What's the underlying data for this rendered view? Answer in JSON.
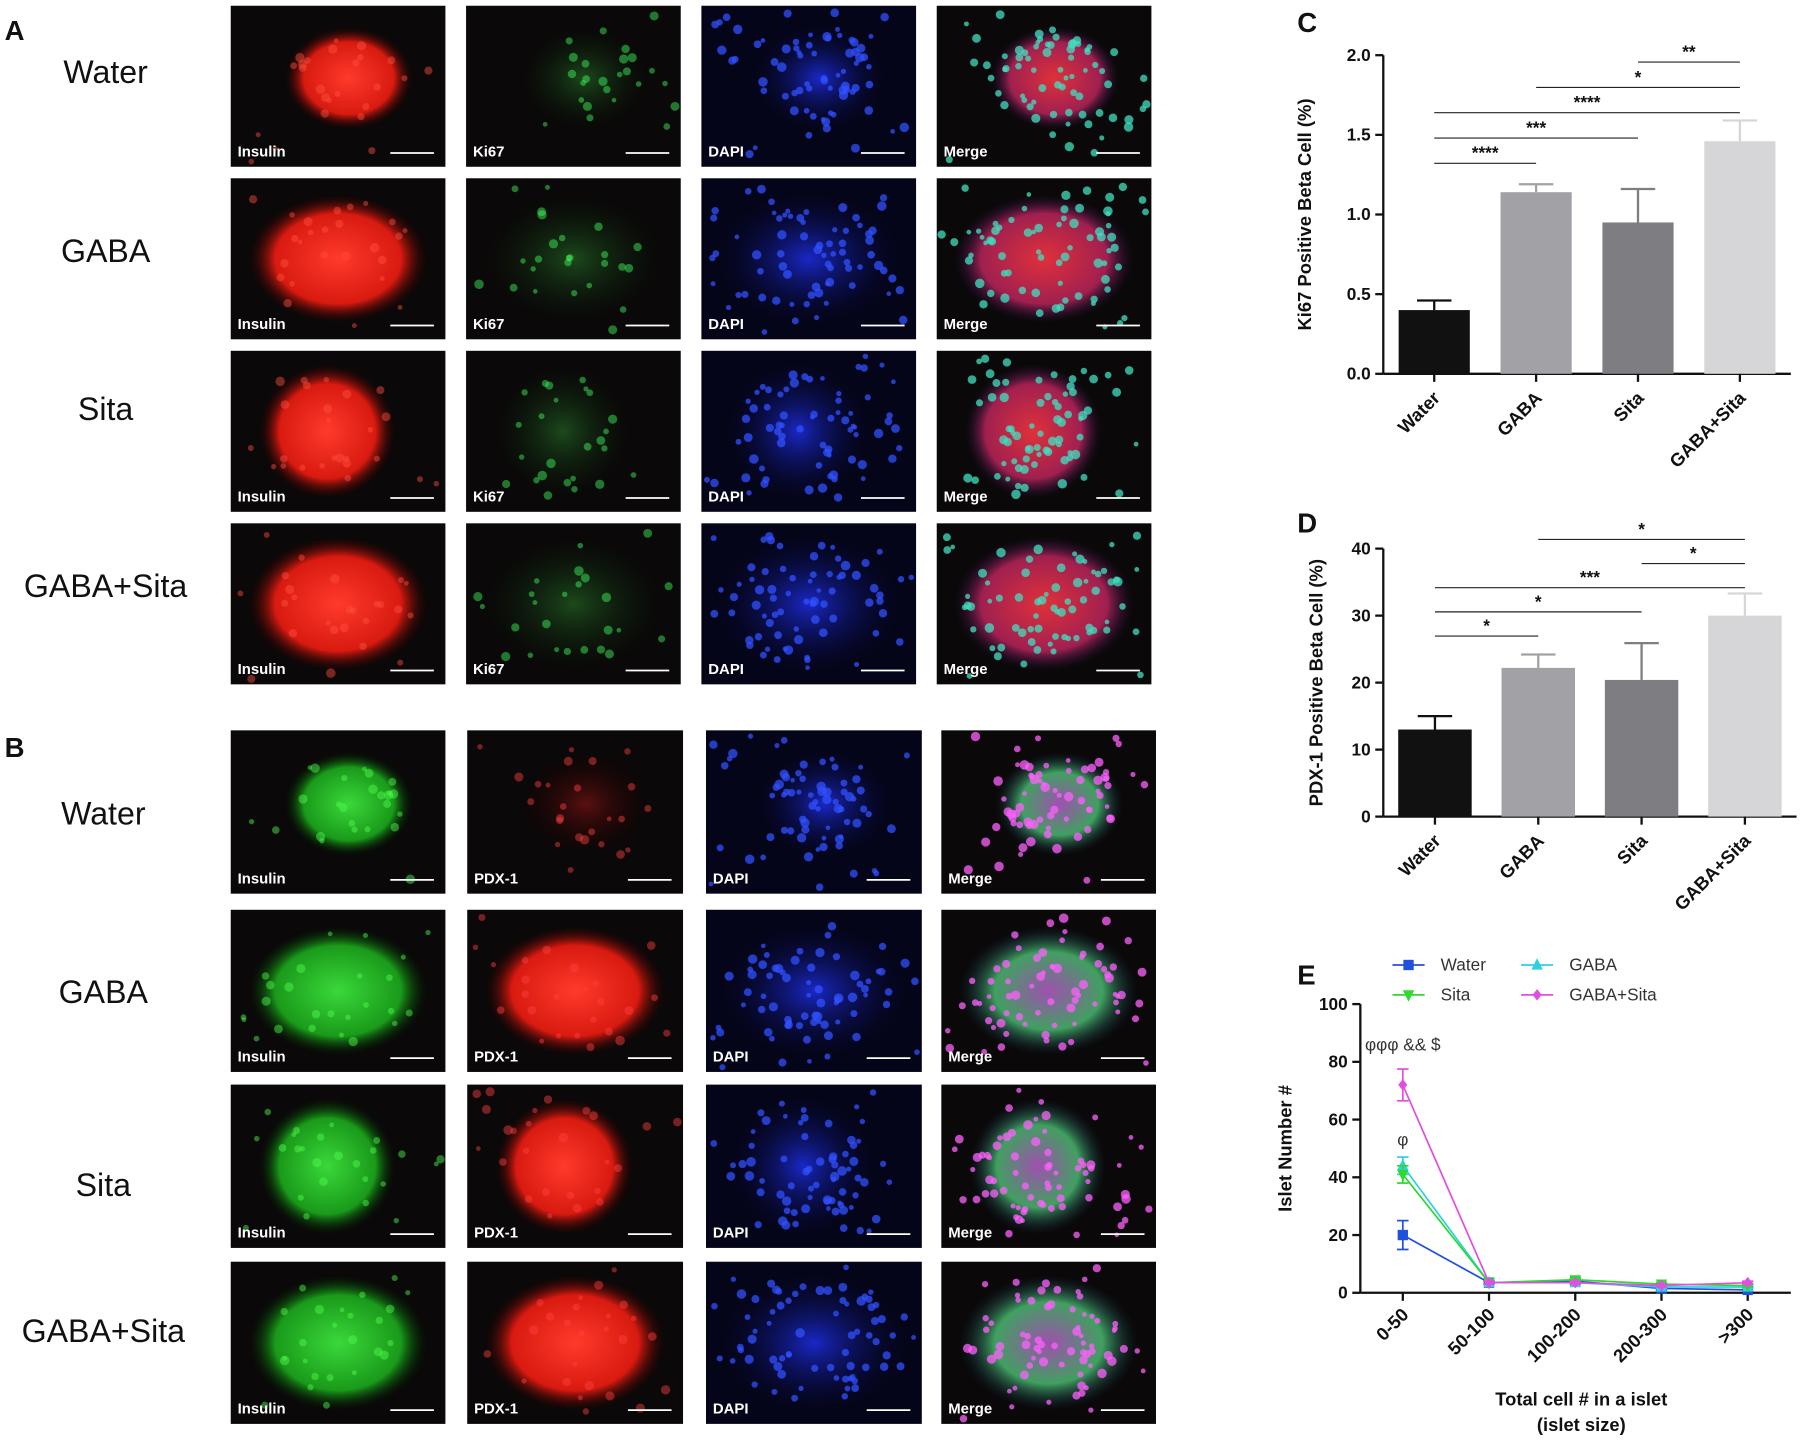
{
  "panels": {
    "A": {
      "letter": "A",
      "rows": [
        "Water",
        "GABA",
        "Sita",
        "GABA+Sita"
      ],
      "stains": [
        "Insulin",
        "Ki67",
        "DAPI",
        "Merge"
      ]
    },
    "B": {
      "letter": "B",
      "rows": [
        "Water",
        "GABA",
        "Sita",
        "GABA+Sita"
      ],
      "stains": [
        "Insulin",
        "PDX-1",
        "DAPI",
        "Merge"
      ]
    }
  },
  "chart_data": [
    {
      "type": "bar",
      "panel": "C",
      "y_label": "Ki67 Positive Beta Cell (%)",
      "categories": [
        "Water",
        "GABA",
        "Sita",
        "GABA+Sita"
      ],
      "values": [
        0.4,
        1.14,
        0.95,
        1.46
      ],
      "errors": [
        0.06,
        0.05,
        0.21,
        0.13
      ],
      "colors": [
        "#111111",
        "#a2a2a6",
        "#7e7e82",
        "#d6d6d8"
      ],
      "ylim": [
        0,
        2.0
      ],
      "yticks": [
        {
          "value": 0,
          "label": "0.0"
        },
        0.5,
        {
          "value": 1,
          "label": "1.0"
        },
        1.5,
        {
          "value": 2,
          "label": "2.0"
        }
      ],
      "significance": [
        {
          "pair": [
            "Water",
            "GABA"
          ],
          "label": "****"
        },
        {
          "pair": [
            "Water",
            "Sita"
          ],
          "label": "***"
        },
        {
          "pair": [
            "Water",
            "GABA+Sita"
          ],
          "label": "****"
        },
        {
          "pair": [
            "GABA",
            "GABA+Sita"
          ],
          "label": "*"
        },
        {
          "pair": [
            "Sita",
            "GABA+Sita"
          ],
          "label": "**"
        }
      ]
    },
    {
      "type": "bar",
      "panel": "D",
      "y_label": "PDX-1 Positive Beta Cell (%)",
      "categories": [
        "Water",
        "GABA",
        "Sita",
        "GABA+Sita"
      ],
      "values": [
        13,
        22.2,
        20.4,
        30
      ],
      "errors": [
        2,
        2,
        5.5,
        3.3
      ],
      "colors": [
        "#111111",
        "#a2a2a6",
        "#7e7e82",
        "#d6d6d8"
      ],
      "ylim": [
        0,
        40
      ],
      "yticks": [
        0,
        10,
        20,
        30,
        40
      ],
      "significance": [
        {
          "pair": [
            "Water",
            "GABA"
          ],
          "label": "*"
        },
        {
          "pair": [
            "Water",
            "Sita"
          ],
          "label": "*"
        },
        {
          "pair": [
            "Water",
            "GABA+Sita"
          ],
          "label": "***"
        },
        {
          "pair": [
            "Sita",
            "GABA+Sita"
          ],
          "label": "*"
        },
        {
          "pair": [
            "GABA",
            "GABA+Sita"
          ],
          "label": "*"
        }
      ]
    },
    {
      "type": "line",
      "panel": "E",
      "y_label": "Islet Number #",
      "x_label": [
        "Total cell # in a islet",
        "(islet size)"
      ],
      "categories": [
        "0-50",
        "50-100",
        "100-200",
        "200-300",
        ">300"
      ],
      "ylim": [
        0,
        100
      ],
      "yticks": [
        0,
        20,
        40,
        60,
        80,
        100
      ],
      "series": [
        {
          "name": "Water",
          "color": "#2050e0",
          "marker": "square",
          "values": [
            20,
            3.5,
            4,
            1.5,
            1
          ],
          "errors": [
            5,
            0.5,
            1,
            0.5,
            0.5
          ]
        },
        {
          "name": "GABA",
          "color": "#30d0e0",
          "marker": "triangle-up",
          "values": [
            44,
            3.5,
            3.5,
            2,
            2
          ],
          "errors": [
            3,
            0.5,
            0.5,
            0.5,
            0.5
          ]
        },
        {
          "name": "Sita",
          "color": "#30d830",
          "marker": "triangle-down",
          "values": [
            41,
            3.5,
            4.5,
            3,
            2.5
          ],
          "errors": [
            3,
            0.5,
            0.5,
            0.5,
            0.5
          ]
        },
        {
          "name": "GABA+Sita",
          "color": "#e050e0",
          "marker": "diamond",
          "values": [
            72,
            3.5,
            3.5,
            2.5,
            3.5
          ],
          "errors": [
            5.5,
            0.5,
            0.5,
            0.5,
            0.5
          ]
        }
      ],
      "annotations": [
        {
          "text": "φφφ && $",
          "category": "0-50",
          "y": 86
        },
        {
          "text": "φ",
          "category": "0-50",
          "y": 53
        }
      ]
    }
  ]
}
